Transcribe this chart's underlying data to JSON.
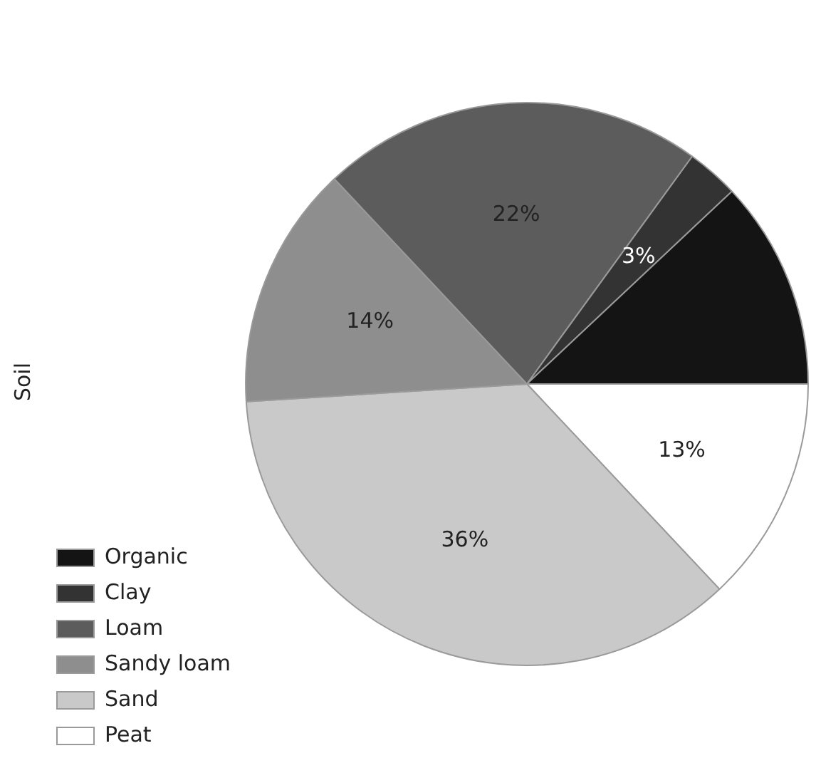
{
  "chart_data": {
    "type": "pie",
    "ylabel": "Soil",
    "categories": [
      "Organic",
      "Clay",
      "Loam",
      "Sandy loam",
      "Sand",
      "Peat"
    ],
    "values": [
      12,
      3,
      22,
      14,
      36,
      13
    ],
    "colors": [
      "#141414",
      "#333333",
      "#5c5c5c",
      "#8e8e8e",
      "#c9c9c9",
      "#ffffff"
    ],
    "value_labels": [
      null,
      "3%",
      "22%",
      "14%",
      "36%",
      "13%"
    ],
    "legend": "bottom left"
  }
}
